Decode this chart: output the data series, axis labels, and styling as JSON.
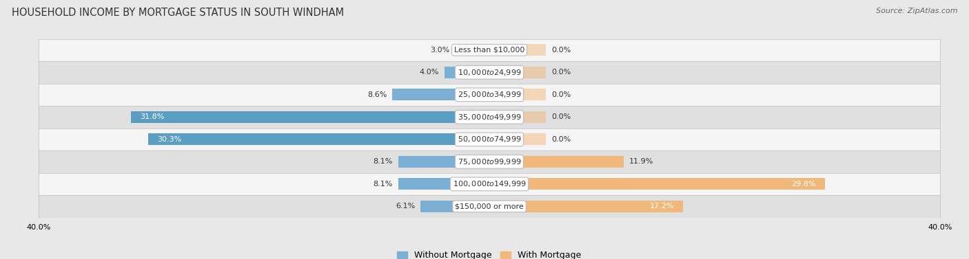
{
  "title": "HOUSEHOLD INCOME BY MORTGAGE STATUS IN SOUTH WINDHAM",
  "source": "Source: ZipAtlas.com",
  "categories": [
    "Less than $10,000",
    "$10,000 to $24,999",
    "$25,000 to $34,999",
    "$35,000 to $49,999",
    "$50,000 to $74,999",
    "$75,000 to $99,999",
    "$100,000 to $149,999",
    "$150,000 or more"
  ],
  "without_mortgage": [
    3.0,
    4.0,
    8.6,
    31.8,
    30.3,
    8.1,
    8.1,
    6.1
  ],
  "with_mortgage": [
    0.0,
    0.0,
    0.0,
    0.0,
    0.0,
    11.9,
    29.8,
    17.2
  ],
  "color_without": "#7bafd4",
  "color_without_large": "#5a9ec4",
  "color_with": "#f0b87a",
  "axis_limit": 40.0,
  "bg_color": "#e8e8e8",
  "row_bg_odd": "#f5f5f5",
  "row_bg_even": "#e0e0e0",
  "title_fontsize": 10.5,
  "label_fontsize": 8.0,
  "legend_fontsize": 9,
  "source_fontsize": 8
}
